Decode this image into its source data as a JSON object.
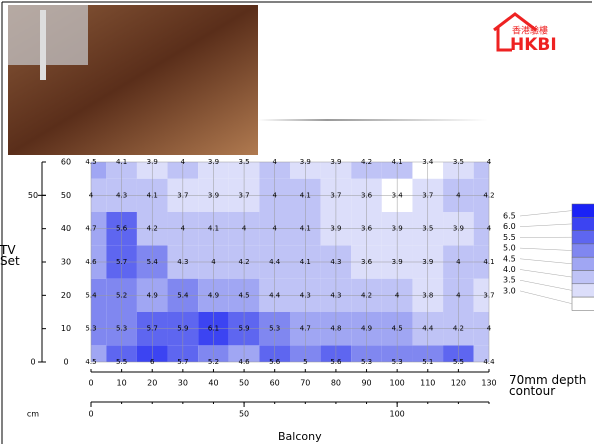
{
  "logo": {
    "chinese": "香港驗樓",
    "text": "HKBI"
  },
  "chart_data": {
    "type": "contour",
    "x": [
      0,
      10,
      20,
      30,
      40,
      50,
      60,
      70,
      80,
      90,
      100,
      110,
      120,
      130
    ],
    "y": [
      0,
      10,
      20,
      30,
      40,
      50,
      60
    ],
    "z": [
      [
        4.5,
        5.5,
        6,
        5.7,
        5.2,
        4.6,
        5.6,
        5,
        5.6,
        5.3,
        5.3,
        5.1,
        5.5,
        4.4
      ],
      [
        5.3,
        5.3,
        5.7,
        5.9,
        6.1,
        5.9,
        5.3,
        4.7,
        4.8,
        4.9,
        4.5,
        4.4,
        4.2,
        4
      ],
      [
        5.4,
        5.2,
        4.9,
        5.4,
        4.9,
        4.5,
        4.4,
        4.3,
        4.3,
        4.2,
        4,
        3.8,
        4,
        3.7
      ],
      [
        4.6,
        5.7,
        5.4,
        4.3,
        4,
        4.2,
        4.4,
        4.1,
        4.3,
        3.6,
        3.9,
        3.9,
        4,
        4.1
      ],
      [
        4.7,
        5.6,
        4.2,
        4,
        4.1,
        4,
        4,
        4.1,
        3.9,
        3.6,
        3.9,
        3.5,
        3.9,
        4
      ],
      [
        4,
        4.3,
        4.1,
        3.7,
        3.9,
        3.7,
        4,
        4.1,
        3.7,
        3.6,
        3.4,
        3.7,
        4,
        4.2
      ],
      [
        4.5,
        4.1,
        3.9,
        4,
        3.9,
        3.5,
        4,
        3.9,
        3.9,
        4.2,
        4.1,
        3.4,
        3.5,
        4
      ]
    ],
    "xlim": [
      0,
      130
    ],
    "ylim": [
      0,
      60
    ],
    "xticks": [
      0,
      10,
      20,
      30,
      40,
      50,
      60,
      70,
      80,
      90,
      100,
      110,
      120,
      130
    ],
    "yticks": [
      0,
      10,
      20,
      30,
      40,
      50,
      60
    ],
    "x2ticks": [
      0,
      50,
      100
    ],
    "x2_unit": "cm",
    "y2ticks": [
      0,
      50
    ],
    "x_label": "Balcony",
    "y_label": "TV Set",
    "grid": true,
    "legend_title": "70mm depth contour",
    "levels": [
      {
        "value": 6.5,
        "label": "6.5",
        "color": "#1a22f6"
      },
      {
        "value": 6,
        "label": "6.0",
        "color": "#3c44f2"
      },
      {
        "value": 5.5,
        "label": "5.5",
        "color": "#5e66f0"
      },
      {
        "value": 5,
        "label": "5.0",
        "color": "#8087f0"
      },
      {
        "value": 4.5,
        "label": "4.5",
        "color": "#a0a6f3"
      },
      {
        "value": 4,
        "label": "4.0",
        "color": "#bfc3f6"
      },
      {
        "value": 3.5,
        "label": "3.5",
        "color": "#dcdefa"
      },
      {
        "value": 3,
        "label": "3.0",
        "color": "#ffffff"
      }
    ]
  }
}
